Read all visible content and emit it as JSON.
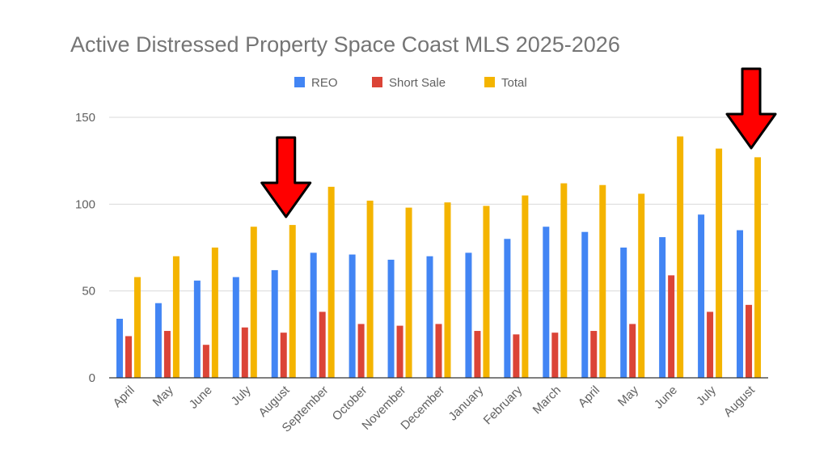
{
  "chart_data": {
    "type": "bar",
    "title": "Active Distressed Property Space Coast MLS 2025-2026",
    "xlabel": "",
    "ylabel": "",
    "ylim": [
      0,
      150
    ],
    "yticks": [
      0,
      50,
      100,
      150
    ],
    "grid": true,
    "legend_position": "top",
    "categories": [
      "April",
      "May",
      "June",
      "July",
      "August",
      "September",
      "October",
      "November",
      "December",
      "January",
      "February",
      "March",
      "April",
      "May",
      "June",
      "July",
      "August"
    ],
    "series": [
      {
        "name": "REO",
        "color": "#4285f4",
        "values": [
          34,
          43,
          56,
          58,
          62,
          72,
          71,
          68,
          70,
          72,
          80,
          87,
          84,
          75,
          81,
          94,
          85
        ]
      },
      {
        "name": "Short Sale",
        "color": "#db4437",
        "values": [
          24,
          27,
          19,
          29,
          26,
          38,
          31,
          30,
          31,
          27,
          25,
          26,
          27,
          31,
          59,
          38,
          42
        ]
      },
      {
        "name": "Total",
        "color": "#f4b400",
        "values": [
          58,
          70,
          75,
          87,
          88,
          110,
          102,
          98,
          101,
          99,
          105,
          112,
          111,
          106,
          139,
          132,
          127
        ]
      }
    ],
    "annotations": [
      {
        "type": "arrow",
        "color": "#ff0000",
        "points_to_category_index": 4
      },
      {
        "type": "arrow",
        "color": "#ff0000",
        "points_to_category_index": 16
      }
    ]
  }
}
